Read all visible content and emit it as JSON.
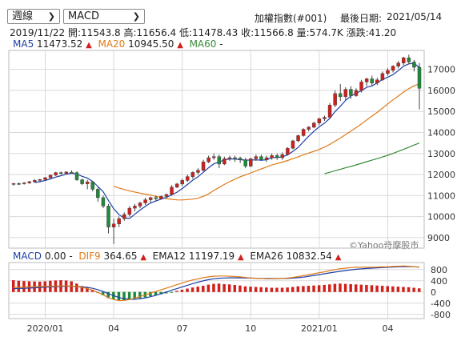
{
  "controls": {
    "period_select": "週線",
    "indicator_select": "MACD"
  },
  "header": {
    "index_name": "加權指數(#001)",
    "last_date_label": "最後日期:",
    "last_date": "2021/05/14"
  },
  "info_bar": {
    "date": "2019/11/22",
    "open": "開:11543.8",
    "high": "高:11656.4",
    "low": "低:11478.43",
    "close": "收:11566.8",
    "volume": "量:574.7K",
    "change": "漲跌:41.20"
  },
  "ma_legend": {
    "ma5_label": "MA5",
    "ma5_value": "11473.52",
    "ma20_label": "MA20",
    "ma20_value": "10945.50",
    "ma60_label": "MA60",
    "ma60_value": "-",
    "up_arrow": "▲"
  },
  "macd_legend": {
    "macd_label": "MACD",
    "macd_value": "0.00 -",
    "dif_label": "DIF9",
    "dif_value": "364.65",
    "ema12_label": "EMA12",
    "ema12_value": "11197.19",
    "ema26_label": "EMA26",
    "ema26_value": "10832.54"
  },
  "watermark": "©Yahoo奇摩股市",
  "colors": {
    "up": "#d0201c",
    "down": "#1f8a3a",
    "ma5": "#1f3fa6",
    "ma20": "#e07a18",
    "ma60": "#3a8a3a",
    "grid": "#d9d9d9"
  },
  "chart_data": [
    {
      "type": "candlestick",
      "title": "",
      "ylim": [
        8500,
        17900
      ],
      "y_ticks": [
        9000,
        10000,
        11000,
        12000,
        13000,
        14000,
        15000,
        16000,
        17000
      ],
      "x_ticks": [
        "2020/01",
        "04",
        "07",
        "10",
        "2021/01",
        "04"
      ],
      "candles": [
        [
          11540,
          11600,
          11470,
          11570
        ],
        [
          11570,
          11620,
          11500,
          11560
        ],
        [
          11560,
          11640,
          11520,
          11600
        ],
        [
          11600,
          11700,
          11560,
          11660
        ],
        [
          11650,
          11780,
          11620,
          11720
        ],
        [
          11720,
          11800,
          11680,
          11760
        ],
        [
          11760,
          11880,
          11720,
          11850
        ],
        [
          11850,
          12000,
          11820,
          11970
        ],
        [
          11970,
          12130,
          11930,
          12090
        ],
        [
          12090,
          12140,
          12000,
          12050
        ],
        [
          12050,
          12150,
          12000,
          12120
        ],
        [
          12110,
          12200,
          12050,
          12090
        ],
        [
          12090,
          12150,
          11700,
          11750
        ],
        [
          11750,
          11800,
          11500,
          11560
        ],
        [
          11560,
          11750,
          11300,
          11650
        ],
        [
          11650,
          11700,
          11200,
          11300
        ],
        [
          11300,
          11400,
          10700,
          10900
        ],
        [
          10900,
          11000,
          10400,
          10500
        ],
        [
          10500,
          10600,
          9200,
          9500
        ],
        [
          9500,
          9900,
          8700,
          9650
        ],
        [
          9650,
          10000,
          9500,
          9900
        ],
        [
          9900,
          10200,
          9800,
          10100
        ],
        [
          10100,
          10500,
          10000,
          10400
        ],
        [
          10400,
          10600,
          10250,
          10500
        ],
        [
          10500,
          10700,
          10400,
          10650
        ],
        [
          10650,
          10900,
          10550,
          10800
        ],
        [
          10800,
          10950,
          10650,
          10900
        ],
        [
          10900,
          11000,
          10750,
          10850
        ],
        [
          10850,
          11000,
          10800,
          10960
        ],
        [
          10960,
          11100,
          10900,
          11050
        ],
        [
          11050,
          11500,
          11000,
          11400
        ],
        [
          11400,
          11600,
          11350,
          11550
        ],
        [
          11550,
          11800,
          11450,
          11720
        ],
        [
          11720,
          12000,
          11650,
          11900
        ],
        [
          11900,
          12150,
          11800,
          12100
        ],
        [
          12100,
          12300,
          12000,
          12200
        ],
        [
          12200,
          12700,
          12150,
          12600
        ],
        [
          12600,
          12900,
          12550,
          12800
        ],
        [
          12800,
          13000,
          12700,
          12850
        ],
        [
          12850,
          12950,
          12300,
          12500
        ],
        [
          12500,
          12850,
          12450,
          12750
        ],
        [
          12750,
          12900,
          12650,
          12800
        ],
        [
          12800,
          12900,
          12600,
          12780
        ],
        [
          12780,
          12850,
          12550,
          12700
        ],
        [
          12700,
          12800,
          12300,
          12400
        ],
        [
          12400,
          12800,
          12350,
          12750
        ],
        [
          12750,
          12950,
          12650,
          12850
        ],
        [
          12850,
          12950,
          12650,
          12700
        ],
        [
          12700,
          12900,
          12600,
          12800
        ],
        [
          12800,
          13000,
          12700,
          12900
        ],
        [
          12900,
          13000,
          12700,
          12800
        ],
        [
          12800,
          13050,
          12700,
          12950
        ],
        [
          12950,
          13300,
          12900,
          13250
        ],
        [
          13250,
          13650,
          13200,
          13600
        ],
        [
          13600,
          13900,
          13550,
          13850
        ],
        [
          13850,
          14200,
          13800,
          14150
        ],
        [
          14150,
          14300,
          14050,
          14250
        ],
        [
          14250,
          14500,
          14200,
          14450
        ],
        [
          14450,
          14700,
          14350,
          14650
        ],
        [
          14650,
          14800,
          14550,
          14720
        ],
        [
          14720,
          15400,
          14650,
          15300
        ],
        [
          15300,
          16000,
          15200,
          15850
        ],
        [
          15850,
          16300,
          15500,
          15700
        ],
        [
          15700,
          16150,
          15550,
          16050
        ],
        [
          16050,
          16200,
          15600,
          15750
        ],
        [
          15750,
          16100,
          15700,
          16000
        ],
        [
          16000,
          16500,
          15900,
          16400
        ],
        [
          16400,
          16600,
          16200,
          16550
        ],
        [
          16550,
          16700,
          16200,
          16350
        ],
        [
          16350,
          16600,
          16250,
          16500
        ],
        [
          16500,
          16900,
          16450,
          16800
        ],
        [
          16800,
          17050,
          16700,
          16950
        ],
        [
          16950,
          17200,
          16850,
          17150
        ],
        [
          17150,
          17400,
          17050,
          17300
        ],
        [
          17300,
          17600,
          17200,
          17550
        ],
        [
          17550,
          17700,
          17250,
          17350
        ],
        [
          17350,
          17450,
          16900,
          17100
        ],
        [
          17100,
          17300,
          15100,
          16100
        ]
      ]
    },
    {
      "type": "histogram+line",
      "title": "",
      "ylim": [
        -950,
        1050
      ],
      "y_ticks": [
        -800,
        -400,
        0,
        400,
        800
      ],
      "series": [
        {
          "name": "MACD",
          "values": [
            420,
            400,
            390,
            380,
            375,
            370,
            380,
            400,
            410,
            420,
            410,
            380,
            300,
            210,
            150,
            80,
            -20,
            -120,
            -220,
            -260,
            -300,
            -300,
            -280,
            -250,
            -220,
            -190,
            -150,
            -120,
            -80,
            -50,
            -20,
            40,
            80,
            120,
            160,
            190,
            220,
            260,
            290,
            300,
            280,
            270,
            250,
            230,
            200,
            190,
            180,
            170,
            160,
            150,
            150,
            150,
            160,
            180,
            200,
            210,
            220,
            230,
            240,
            250,
            270,
            290,
            300,
            290,
            280,
            270,
            260,
            250,
            240,
            230,
            220,
            210,
            200,
            190,
            180,
            170,
            150,
            130
          ]
        },
        {
          "name": "DIF9",
          "values": [
            160,
            165,
            175,
            180,
            190,
            195,
            200,
            205,
            210,
            215,
            215,
            210,
            190,
            160,
            120,
            60,
            -20,
            -100,
            -200,
            -270,
            -310,
            -300,
            -270,
            -220,
            -160,
            -100,
            -40,
            20,
            80,
            140,
            200,
            260,
            320,
            380,
            430,
            470,
            510,
            540,
            560,
            570,
            570,
            560,
            550,
            540,
            520,
            500,
            490,
            480,
            470,
            470,
            475,
            480,
            500,
            520,
            550,
            580,
            620,
            650,
            690,
            720,
            760,
            800,
            830,
            850,
            870,
            880,
            880,
            880,
            885,
            890,
            895,
            900,
            910,
            920,
            930,
            920,
            900,
            880
          ]
        },
        {
          "name": "EMA12",
          "values": [
            120,
            125,
            130,
            140,
            150,
            160,
            170,
            180,
            190,
            200,
            205,
            205,
            200,
            185,
            165,
            130,
            80,
            20,
            -60,
            -130,
            -200,
            -240,
            -260,
            -260,
            -240,
            -210,
            -170,
            -120,
            -60,
            0,
            60,
            120,
            180,
            240,
            300,
            350,
            400,
            440,
            470,
            490,
            500,
            505,
            505,
            505,
            500,
            495,
            490,
            485,
            480,
            478,
            478,
            480,
            485,
            495,
            510,
            530,
            560,
            590,
            620,
            650,
            680,
            710,
            740,
            765,
            790,
            810,
            825,
            840,
            850,
            860,
            870,
            880,
            890,
            900,
            905,
            905,
            900,
            890
          ]
        }
      ]
    }
  ]
}
